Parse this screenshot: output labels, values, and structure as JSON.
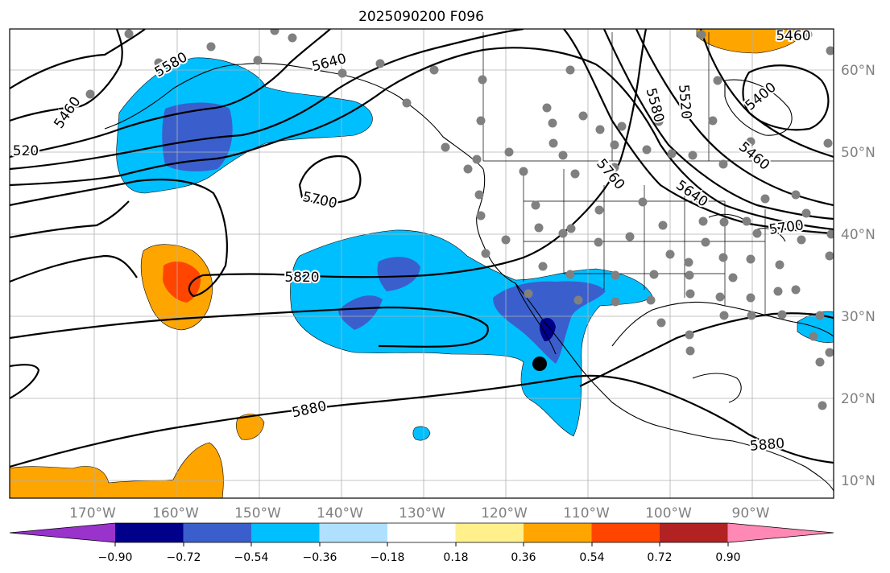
{
  "title": "2025090200 F096",
  "lon_ticks": [
    "170°W",
    "160°W",
    "150°W",
    "140°W",
    "130°W",
    "120°W",
    "110°W",
    "100°W",
    "90°W"
  ],
  "lat_ticks": [
    "60°N",
    "50°N",
    "40°N",
    "30°N",
    "20°N",
    "10°N"
  ],
  "contour_labels": [
    "5460",
    "5580",
    "5640",
    "5700",
    "5820",
    "5880",
    "5760",
    "5580",
    "5520",
    "5400",
    "5460",
    "5640",
    "5700",
    "5880",
    "5460",
    "520"
  ],
  "colorbar": {
    "colors": [
      "#9933cc",
      "#00008b",
      "#3a5fcd",
      "#00bfff",
      "#b0e0ff",
      "#ffffff",
      "#fff08c",
      "#ffa500",
      "#ff4500",
      "#b22222",
      "#ff88b4"
    ],
    "ticks": [
      "−0.90",
      "−0.72",
      "−0.54",
      "−0.36",
      "−0.18",
      "0.18",
      "0.36",
      "0.54",
      "0.72",
      "0.90"
    ]
  },
  "colors": {
    "stations": "#808080",
    "contours": "#000000",
    "grid": "#b0b0b0"
  }
}
